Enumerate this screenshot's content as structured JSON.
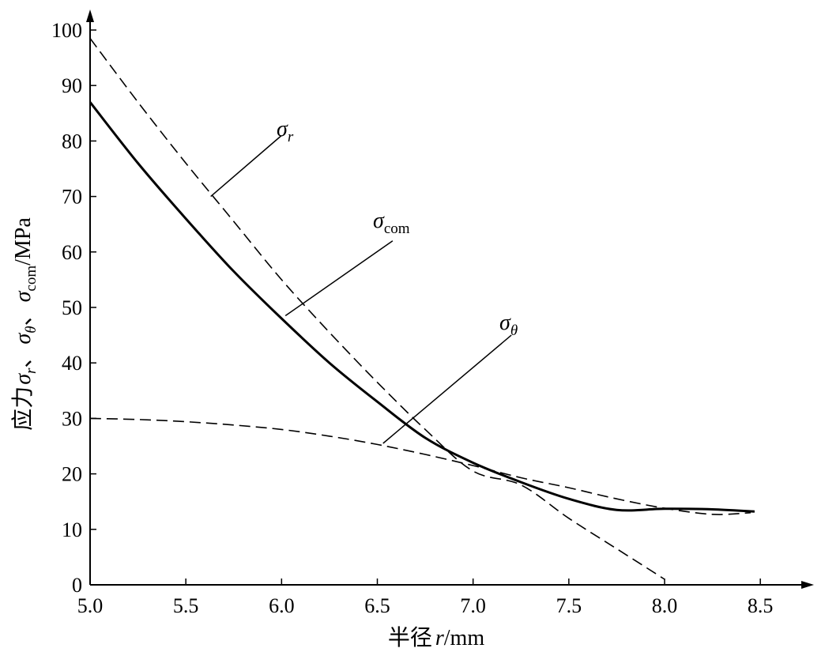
{
  "chart_data": {
    "type": "line",
    "xlabel": "半径 r/mm",
    "ylabel": "应力 σr、σθ、σcom/MPa",
    "xlim": [
      5.0,
      8.65
    ],
    "ylim": [
      0,
      104
    ],
    "x_ticks": [
      "5.0",
      "5.5",
      "6.0",
      "6.5",
      "7.0",
      "7.5",
      "8.0",
      "8.5"
    ],
    "y_ticks": [
      "0",
      "10",
      "20",
      "30",
      "40",
      "50",
      "60",
      "70",
      "80",
      "90",
      "100"
    ],
    "grid": false,
    "series": [
      {
        "name": "σr",
        "style": "dashed",
        "x": [
          5.0,
          5.25,
          5.5,
          5.75,
          6.0,
          6.25,
          6.5,
          6.75,
          7.0,
          7.25,
          7.5,
          7.75,
          8.0
        ],
        "y": [
          98.5,
          87.0,
          76.0,
          65.5,
          55.0,
          45.5,
          36.5,
          28.0,
          20.5,
          18.0,
          12.0,
          6.5,
          1.0
        ]
      },
      {
        "name": "σθ",
        "style": "dashed",
        "x": [
          5.0,
          5.25,
          5.5,
          5.75,
          6.0,
          6.25,
          6.5,
          6.75,
          7.0,
          7.25,
          7.5,
          7.75,
          8.0,
          8.25,
          8.45
        ],
        "y": [
          30.0,
          29.8,
          29.4,
          28.8,
          28.0,
          26.8,
          25.3,
          23.5,
          21.5,
          19.3,
          17.5,
          15.5,
          13.8,
          12.7,
          13.0
        ]
      },
      {
        "name": "σcom",
        "style": "solid",
        "x": [
          5.0,
          5.25,
          5.5,
          5.75,
          6.0,
          6.25,
          6.5,
          6.75,
          7.0,
          7.25,
          7.5,
          7.75,
          8.0,
          8.25,
          8.47
        ],
        "y": [
          87.0,
          76.0,
          66.0,
          56.5,
          48.0,
          40.0,
          33.0,
          26.5,
          22.0,
          18.5,
          15.5,
          13.5,
          13.7,
          13.6,
          13.2
        ]
      }
    ],
    "annotations": [
      {
        "label": "σr",
        "series": "σr",
        "from": [
          5.63,
          70.0
        ],
        "to": [
          6.0,
          81.0
        ]
      },
      {
        "label": "σcom",
        "series": "σcom",
        "from": [
          6.02,
          48.5
        ],
        "to": [
          6.58,
          62.0
        ]
      },
      {
        "label": "σθ",
        "series": "σθ",
        "from": [
          6.53,
          25.5
        ],
        "to": [
          7.2,
          45.0
        ]
      }
    ]
  },
  "labels": {
    "y_axis_prefix": "应力",
    "x_axis_prefix": "半径",
    "x_axis_var": "r",
    "x_axis_unit": "/mm",
    "y_axis_unit": "/MPa",
    "sigma": "σ",
    "sep": "、",
    "sub_r": "r",
    "sub_theta": "θ",
    "sub_com": "com"
  }
}
